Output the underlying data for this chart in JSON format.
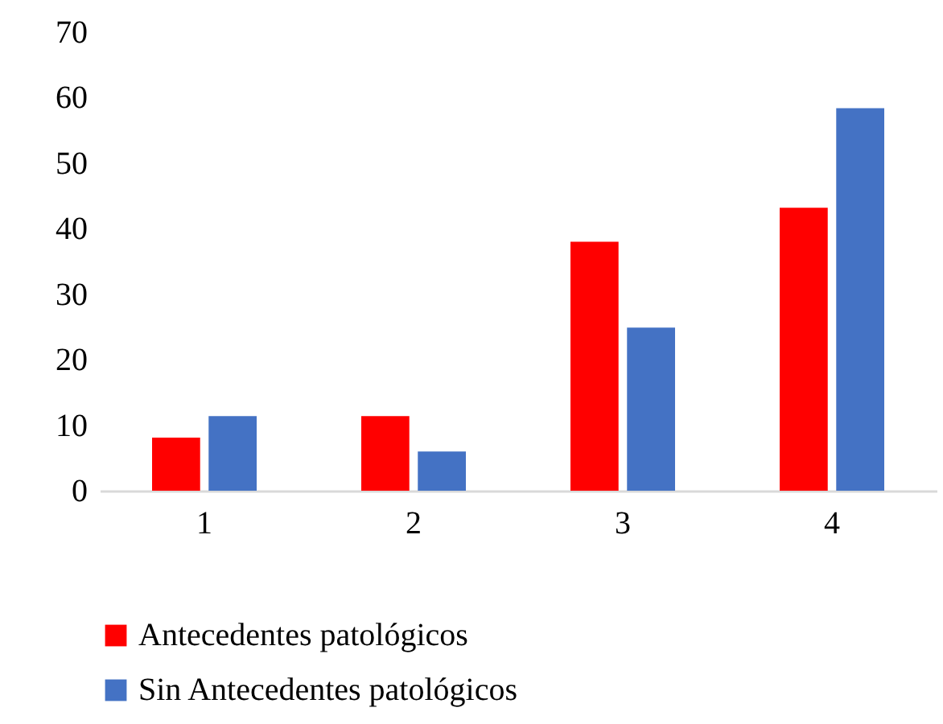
{
  "chart_data": {
    "type": "bar",
    "categories": [
      "1",
      "2",
      "3",
      "4"
    ],
    "series": [
      {
        "name": "Antecedentes patológicos",
        "color": "#ff0000",
        "values": [
          8.1,
          11.4,
          38.0,
          43.2
        ]
      },
      {
        "name": "Sin Antecedentes patológicos",
        "color": "#4472c4",
        "values": [
          11.4,
          6.0,
          24.9,
          58.4
        ]
      }
    ],
    "ylim": [
      0,
      70
    ],
    "yticks": [
      0,
      10,
      20,
      30,
      40,
      50,
      60,
      70
    ],
    "grid": false,
    "legend": "bottom"
  }
}
